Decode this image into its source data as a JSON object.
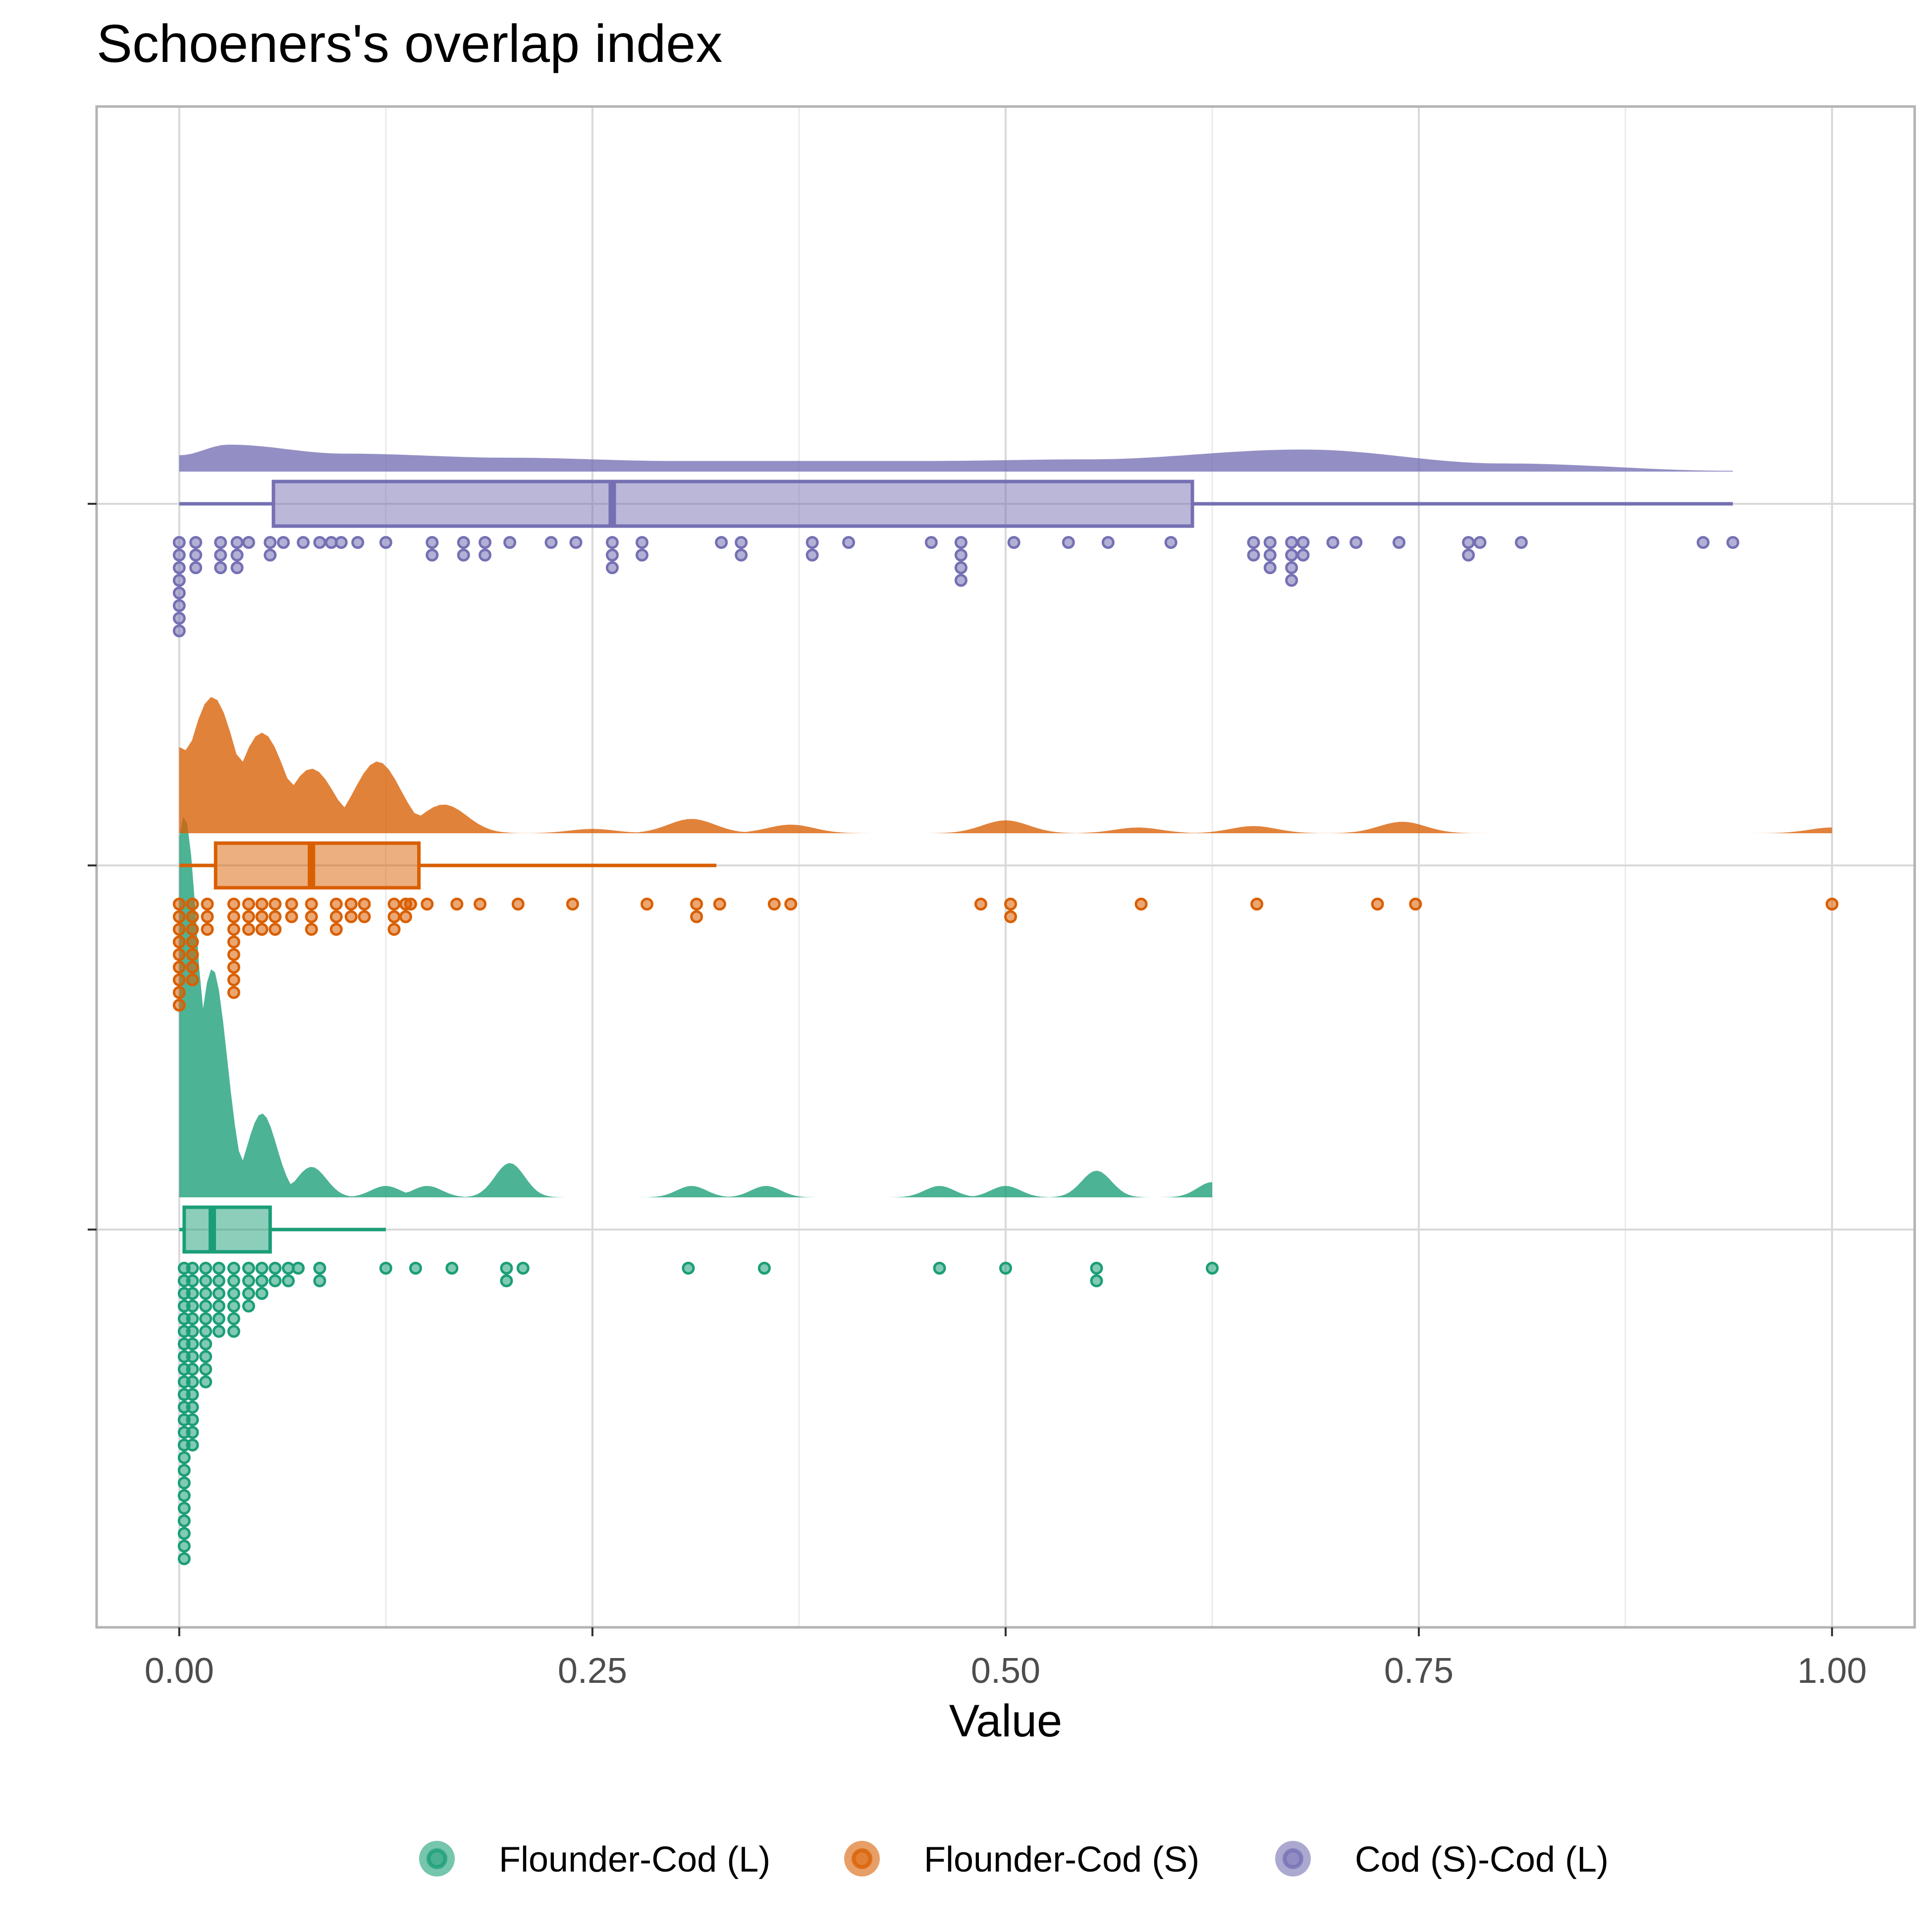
{
  "chart_data": {
    "type": "raincloud",
    "title": "Schoeners's overlap index",
    "xlabel": "Value",
    "ylabel": "",
    "xlim": [
      -0.05,
      1.05
    ],
    "x_ticks": [
      0,
      0.25,
      0.5,
      0.75,
      1
    ],
    "x_tick_labels": [
      "0.00",
      "0.25",
      "0.50",
      "0.75",
      "1.00"
    ],
    "grid": true,
    "legend_position": "bottom",
    "series": [
      {
        "name": "Flounder-Cod (L)",
        "color": "#1B9E77",
        "box": {
          "min": 0.0,
          "q1": 0.003,
          "median": 0.02,
          "q3": 0.055,
          "max": 0.125
        },
        "density_peaks": [
          [
            0.003,
            1.0
          ],
          [
            0.02,
            0.6
          ],
          [
            0.05,
            0.22
          ],
          [
            0.08,
            0.08
          ],
          [
            0.125,
            0.03
          ],
          [
            0.15,
            0.03
          ],
          [
            0.2,
            0.09
          ],
          [
            0.31,
            0.03
          ],
          [
            0.355,
            0.03
          ],
          [
            0.46,
            0.03
          ],
          [
            0.5,
            0.03
          ],
          [
            0.555,
            0.07
          ],
          [
            0.625,
            0.04
          ]
        ],
        "points": [
          [
            0.003,
            24
          ],
          [
            0.008,
            15
          ],
          [
            0.016,
            10
          ],
          [
            0.024,
            6
          ],
          [
            0.033,
            6
          ],
          [
            0.042,
            4
          ],
          [
            0.05,
            3
          ],
          [
            0.058,
            2
          ],
          [
            0.066,
            2
          ],
          [
            0.072,
            1
          ],
          [
            0.085,
            2
          ],
          [
            0.125,
            1
          ],
          [
            0.143,
            1
          ],
          [
            0.165,
            1
          ],
          [
            0.198,
            2
          ],
          [
            0.208,
            1
          ],
          [
            0.308,
            1
          ],
          [
            0.354,
            1
          ],
          [
            0.46,
            1
          ],
          [
            0.5,
            1
          ],
          [
            0.555,
            2
          ],
          [
            0.625,
            1
          ]
        ]
      },
      {
        "name": "Flounder-Cod (S)",
        "color": "#D95F02",
        "box": {
          "min": 0.0,
          "q1": 0.022,
          "median": 0.08,
          "q3": 0.145,
          "max": 0.325
        },
        "density_peaks": [
          [
            0.0,
            0.6
          ],
          [
            0.02,
            0.95
          ],
          [
            0.05,
            0.7
          ],
          [
            0.08,
            0.45
          ],
          [
            0.12,
            0.5
          ],
          [
            0.16,
            0.2
          ],
          [
            0.25,
            0.03
          ],
          [
            0.31,
            0.1
          ],
          [
            0.37,
            0.06
          ],
          [
            0.5,
            0.09
          ],
          [
            0.58,
            0.04
          ],
          [
            0.65,
            0.05
          ],
          [
            0.74,
            0.08
          ],
          [
            1.0,
            0.04
          ]
        ],
        "points": [
          [
            0.0,
            9
          ],
          [
            0.008,
            7
          ],
          [
            0.017,
            3
          ],
          [
            0.033,
            8
          ],
          [
            0.042,
            3
          ],
          [
            0.05,
            3
          ],
          [
            0.058,
            3
          ],
          [
            0.068,
            2
          ],
          [
            0.08,
            3
          ],
          [
            0.095,
            3
          ],
          [
            0.104,
            2
          ],
          [
            0.112,
            2
          ],
          [
            0.13,
            3
          ],
          [
            0.137,
            2
          ],
          [
            0.14,
            1
          ],
          [
            0.15,
            1
          ],
          [
            0.168,
            1
          ],
          [
            0.182,
            1
          ],
          [
            0.205,
            1
          ],
          [
            0.238,
            1
          ],
          [
            0.283,
            1
          ],
          [
            0.313,
            2
          ],
          [
            0.327,
            1
          ],
          [
            0.36,
            1
          ],
          [
            0.37,
            1
          ],
          [
            0.485,
            1
          ],
          [
            0.503,
            2
          ],
          [
            0.582,
            1
          ],
          [
            0.652,
            1
          ],
          [
            0.725,
            1
          ],
          [
            0.748,
            1
          ],
          [
            1.0,
            1
          ]
        ]
      },
      {
        "name": "Cod (S)-Cod (L)",
        "color": "#7570B3",
        "box": {
          "min": 0.0,
          "q1": 0.057,
          "median": 0.262,
          "q3": 0.613,
          "max": 0.94
        },
        "density_peaks": [
          [
            0.0,
            0.2
          ],
          [
            0.03,
            0.33
          ],
          [
            0.1,
            0.22
          ],
          [
            0.2,
            0.17
          ],
          [
            0.3,
            0.13
          ],
          [
            0.45,
            0.13
          ],
          [
            0.55,
            0.15
          ],
          [
            0.68,
            0.27
          ],
          [
            0.8,
            0.1
          ],
          [
            0.94,
            0.01
          ]
        ],
        "points": [
          [
            0.0,
            8
          ],
          [
            0.01,
            3
          ],
          [
            0.025,
            3
          ],
          [
            0.035,
            3
          ],
          [
            0.042,
            1
          ],
          [
            0.055,
            2
          ],
          [
            0.063,
            1
          ],
          [
            0.075,
            1
          ],
          [
            0.085,
            1
          ],
          [
            0.092,
            1
          ],
          [
            0.098,
            1
          ],
          [
            0.108,
            1
          ],
          [
            0.125,
            1
          ],
          [
            0.153,
            2
          ],
          [
            0.172,
            2
          ],
          [
            0.185,
            2
          ],
          [
            0.2,
            1
          ],
          [
            0.225,
            1
          ],
          [
            0.24,
            1
          ],
          [
            0.262,
            3
          ],
          [
            0.28,
            2
          ],
          [
            0.328,
            1
          ],
          [
            0.34,
            2
          ],
          [
            0.383,
            2
          ],
          [
            0.405,
            1
          ],
          [
            0.455,
            1
          ],
          [
            0.473,
            4
          ],
          [
            0.505,
            1
          ],
          [
            0.538,
            1
          ],
          [
            0.562,
            1
          ],
          [
            0.6,
            1
          ],
          [
            0.65,
            2
          ],
          [
            0.66,
            3
          ],
          [
            0.673,
            4
          ],
          [
            0.68,
            2
          ],
          [
            0.698,
            1
          ],
          [
            0.712,
            1
          ],
          [
            0.738,
            1
          ],
          [
            0.78,
            2
          ],
          [
            0.787,
            1
          ],
          [
            0.812,
            1
          ],
          [
            0.922,
            1
          ],
          [
            0.94,
            1
          ]
        ]
      }
    ]
  }
}
